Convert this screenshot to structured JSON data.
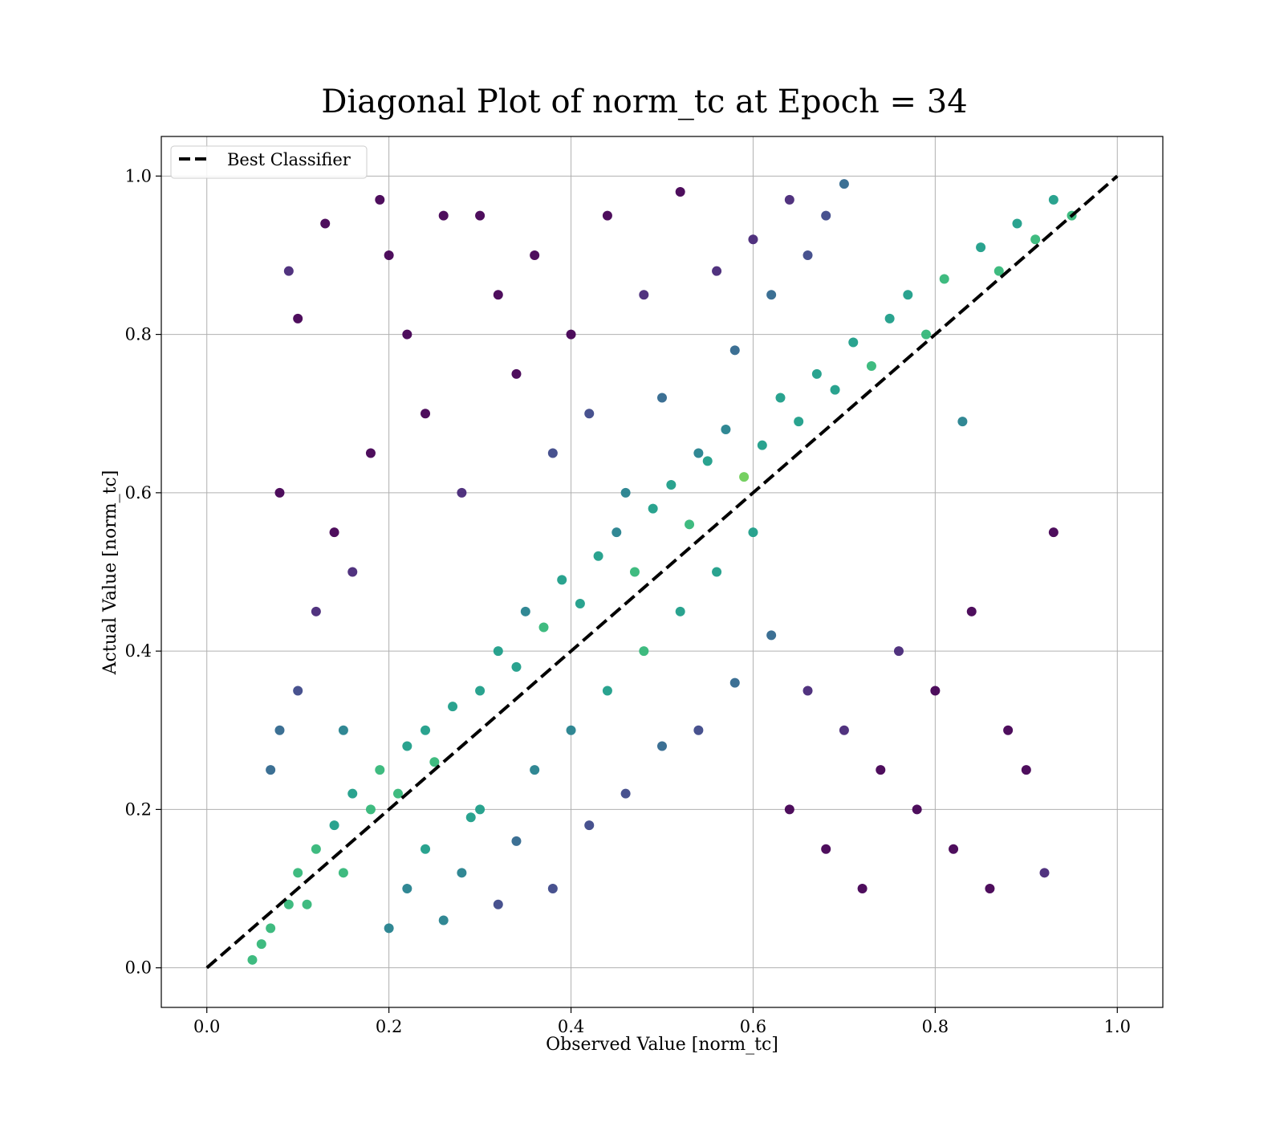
{
  "chart_data": {
    "type": "scatter",
    "title": "Diagonal Plot of norm_tc at Epoch = 34",
    "xlabel": "Observed Value [norm_tc]",
    "ylabel": "Actual Value [norm_tc]",
    "xlim": [
      -0.05,
      1.05
    ],
    "ylim": [
      -0.05,
      1.05
    ],
    "x_ticks": [
      "0.0",
      "0.2",
      "0.4",
      "0.6",
      "0.8",
      "1.0"
    ],
    "y_ticks": [
      "0.0",
      "0.2",
      "0.4",
      "0.6",
      "0.8",
      "1.0"
    ],
    "grid": true,
    "legend": {
      "placement": "top-left",
      "entries": [
        {
          "label": "Best Classifier",
          "style": "dashed",
          "color": "#000000"
        }
      ]
    },
    "reference_line": {
      "name": "Best Classifier",
      "x": [
        0.0,
        1.0
      ],
      "y": [
        0.0,
        1.0
      ],
      "style": "dashed",
      "color": "#000000"
    },
    "colormap": "viridis",
    "colors": [
      "#440154",
      "#482878",
      "#3e4989",
      "#31688e",
      "#26828e",
      "#1f9e89",
      "#35b779",
      "#6ece58",
      "#b5de2b",
      "#fde725"
    ],
    "series": [
      {
        "points": [
          [
            0.05,
            0.01
          ],
          [
            0.06,
            0.03
          ],
          [
            0.07,
            0.05
          ],
          [
            0.09,
            0.08
          ],
          [
            0.1,
            0.12
          ],
          [
            0.11,
            0.08
          ],
          [
            0.12,
            0.15
          ],
          [
            0.14,
            0.18
          ],
          [
            0.15,
            0.12
          ],
          [
            0.16,
            0.22
          ],
          [
            0.18,
            0.2
          ],
          [
            0.19,
            0.25
          ],
          [
            0.21,
            0.22
          ],
          [
            0.22,
            0.28
          ],
          [
            0.24,
            0.3
          ],
          [
            0.25,
            0.26
          ],
          [
            0.27,
            0.33
          ],
          [
            0.29,
            0.19
          ],
          [
            0.3,
            0.35
          ],
          [
            0.32,
            0.4
          ],
          [
            0.34,
            0.38
          ],
          [
            0.35,
            0.45
          ],
          [
            0.37,
            0.43
          ],
          [
            0.39,
            0.49
          ],
          [
            0.41,
            0.46
          ],
          [
            0.43,
            0.52
          ],
          [
            0.45,
            0.55
          ],
          [
            0.47,
            0.5
          ],
          [
            0.49,
            0.58
          ],
          [
            0.51,
            0.61
          ],
          [
            0.53,
            0.56
          ],
          [
            0.55,
            0.64
          ],
          [
            0.57,
            0.68
          ],
          [
            0.59,
            0.62
          ],
          [
            0.61,
            0.66
          ],
          [
            0.63,
            0.72
          ],
          [
            0.65,
            0.69
          ],
          [
            0.67,
            0.75
          ],
          [
            0.69,
            0.73
          ],
          [
            0.71,
            0.79
          ],
          [
            0.73,
            0.76
          ],
          [
            0.75,
            0.82
          ],
          [
            0.77,
            0.85
          ],
          [
            0.79,
            0.8
          ],
          [
            0.81,
            0.87
          ],
          [
            0.83,
            0.69
          ],
          [
            0.85,
            0.91
          ],
          [
            0.87,
            0.88
          ],
          [
            0.89,
            0.94
          ],
          [
            0.91,
            0.92
          ],
          [
            0.93,
            0.97
          ],
          [
            0.95,
            0.95
          ],
          [
            0.2,
            0.05
          ],
          [
            0.22,
            0.1
          ],
          [
            0.24,
            0.15
          ],
          [
            0.26,
            0.06
          ],
          [
            0.28,
            0.12
          ],
          [
            0.3,
            0.2
          ],
          [
            0.32,
            0.08
          ],
          [
            0.34,
            0.16
          ],
          [
            0.36,
            0.25
          ],
          [
            0.38,
            0.1
          ],
          [
            0.4,
            0.3
          ],
          [
            0.42,
            0.18
          ],
          [
            0.44,
            0.35
          ],
          [
            0.46,
            0.22
          ],
          [
            0.48,
            0.4
          ],
          [
            0.5,
            0.28
          ],
          [
            0.52,
            0.45
          ],
          [
            0.54,
            0.3
          ],
          [
            0.56,
            0.5
          ],
          [
            0.58,
            0.36
          ],
          [
            0.6,
            0.55
          ],
          [
            0.62,
            0.42
          ],
          [
            0.64,
            0.2
          ],
          [
            0.66,
            0.35
          ],
          [
            0.68,
            0.15
          ],
          [
            0.7,
            0.3
          ],
          [
            0.72,
            0.1
          ],
          [
            0.74,
            0.25
          ],
          [
            0.76,
            0.4
          ],
          [
            0.78,
            0.2
          ],
          [
            0.8,
            0.35
          ],
          [
            0.82,
            0.15
          ],
          [
            0.84,
            0.45
          ],
          [
            0.86,
            0.1
          ],
          [
            0.88,
            0.3
          ],
          [
            0.9,
            0.25
          ],
          [
            0.92,
            0.12
          ],
          [
            0.93,
            0.55
          ],
          [
            0.3,
            0.95
          ],
          [
            0.32,
            0.85
          ],
          [
            0.34,
            0.75
          ],
          [
            0.36,
            0.9
          ],
          [
            0.38,
            0.65
          ],
          [
            0.4,
            0.8
          ],
          [
            0.42,
            0.7
          ],
          [
            0.44,
            0.95
          ],
          [
            0.46,
            0.6
          ],
          [
            0.48,
            0.85
          ],
          [
            0.5,
            0.72
          ],
          [
            0.52,
            0.98
          ],
          [
            0.54,
            0.65
          ],
          [
            0.56,
            0.88
          ],
          [
            0.58,
            0.78
          ],
          [
            0.6,
            0.92
          ],
          [
            0.62,
            0.85
          ],
          [
            0.64,
            0.97
          ],
          [
            0.66,
            0.9
          ],
          [
            0.68,
            0.95
          ],
          [
            0.7,
            0.99
          ],
          [
            0.2,
            0.9
          ],
          [
            0.22,
            0.8
          ],
          [
            0.24,
            0.7
          ],
          [
            0.26,
            0.95
          ],
          [
            0.28,
            0.6
          ],
          [
            0.18,
            0.65
          ],
          [
            0.16,
            0.5
          ],
          [
            0.14,
            0.55
          ],
          [
            0.12,
            0.45
          ],
          [
            0.1,
            0.82
          ],
          [
            0.09,
            0.88
          ],
          [
            0.08,
            0.6
          ],
          [
            0.13,
            0.94
          ],
          [
            0.19,
            0.97
          ],
          [
            0.15,
            0.3
          ],
          [
            0.1,
            0.35
          ],
          [
            0.08,
            0.3
          ],
          [
            0.07,
            0.25
          ]
        ]
      }
    ]
  }
}
